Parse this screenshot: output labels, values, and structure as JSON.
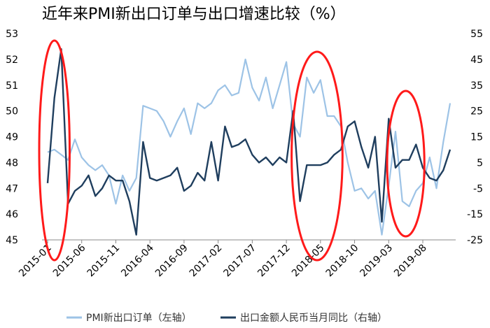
{
  "chart_data": {
    "type": "line",
    "title": "近年来PMI新出口订单与出口增速比较（%）",
    "x_tick_labels": [
      "2015-01",
      "2015-06",
      "2015-11",
      "2016-04",
      "2016-09",
      "2017-02",
      "2017-07",
      "2017-12",
      "2018-05",
      "2018-10",
      "2019-03",
      "2019-08"
    ],
    "x": [
      "2015-01",
      "2015-02",
      "2015-03",
      "2015-04",
      "2015-05",
      "2015-06",
      "2015-07",
      "2015-08",
      "2015-09",
      "2015-10",
      "2015-11",
      "2015-12",
      "2016-01",
      "2016-02",
      "2016-03",
      "2016-04",
      "2016-05",
      "2016-06",
      "2016-07",
      "2016-08",
      "2016-09",
      "2016-10",
      "2016-11",
      "2016-12",
      "2017-01",
      "2017-02",
      "2017-03",
      "2017-04",
      "2017-05",
      "2017-06",
      "2017-07",
      "2017-08",
      "2017-09",
      "2017-10",
      "2017-11",
      "2017-12",
      "2018-01",
      "2018-02",
      "2018-03",
      "2018-04",
      "2018-05",
      "2018-06",
      "2018-07",
      "2018-08",
      "2018-09",
      "2018-10",
      "2018-11",
      "2018-12",
      "2019-01",
      "2019-02",
      "2019-03",
      "2019-04",
      "2019-05",
      "2019-06",
      "2019-07",
      "2019-08",
      "2019-09",
      "2019-10",
      "2019-11",
      "2019-12"
    ],
    "left_axis": {
      "min": 45,
      "max": 53,
      "step": 1
    },
    "right_axis": {
      "min": -25,
      "max": 55,
      "step": 10
    },
    "series": [
      {
        "name": "PMI新出口订单（左轴）",
        "axis": "left",
        "color": "#9dc3e6",
        "values": [
          48.4,
          48.5,
          48.3,
          48.1,
          48.9,
          48.2,
          47.9,
          47.7,
          47.9,
          47.5,
          46.4,
          47.5,
          46.9,
          47.4,
          50.2,
          50.1,
          50.0,
          49.6,
          49.0,
          49.6,
          50.1,
          49.1,
          50.3,
          50.1,
          50.3,
          50.8,
          51.0,
          50.6,
          50.7,
          52.0,
          50.9,
          50.4,
          51.3,
          50.1,
          51.0,
          51.9,
          49.5,
          49.0,
          51.3,
          50.7,
          51.2,
          49.8,
          49.8,
          49.4,
          48.0,
          46.9,
          47.0,
          46.6,
          46.9,
          45.2,
          47.1,
          49.2,
          46.5,
          46.3,
          46.9,
          47.2,
          48.2,
          47.0,
          48.8,
          50.3
        ]
      },
      {
        "name": "出口金额人民币当月同比（右轴）",
        "axis": "right",
        "color": "#1f3e5e",
        "values": [
          -3,
          30,
          49,
          -11,
          -6,
          -4,
          0,
          -8,
          -5,
          0,
          -2,
          -2,
          -10,
          -23,
          13,
          -1,
          -2,
          -1,
          0,
          3,
          -6,
          -4,
          1,
          -2,
          13,
          -2,
          19,
          11,
          12,
          14,
          8,
          5,
          7,
          4,
          7,
          5,
          25,
          -10,
          4,
          4,
          4,
          5,
          8,
          10,
          19,
          21,
          11,
          3,
          15,
          -18,
          22,
          3,
          6,
          6,
          12,
          3,
          -1,
          -2,
          2,
          10
        ]
      }
    ],
    "legend": [
      "PMI新出口订单（左轴）",
      "出口金额人民币当月同比（右轴）"
    ],
    "legend_placement": "bottom",
    "annotation_color": "#ff1a1a",
    "grid": false
  }
}
